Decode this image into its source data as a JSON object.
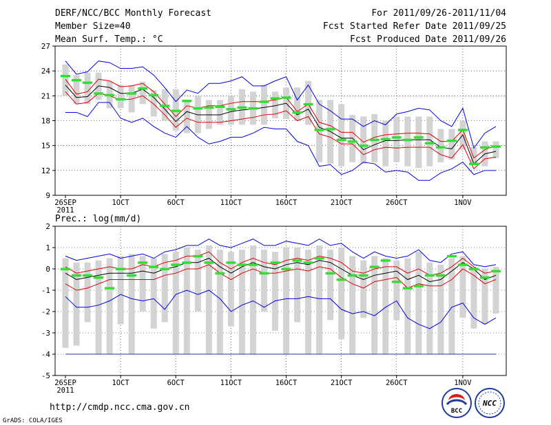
{
  "header": {
    "title": "DERF/NCC/BCC Monthly Forecast",
    "member_size": "Member Size=40",
    "variable": "Mean Surf. Temp.: °C",
    "period": "For 2011/09/26-2011/11/04",
    "started": "Fcst Started Refer Date 2011/09/25",
    "produced": "Fcst Produced Date 2011/09/26"
  },
  "footer": {
    "url": "http://cmdp.ncc.cma.gov.cn",
    "grads": "GrADS: COLA/IGES",
    "logo_bcc": "BCC",
    "logo_ncc": "NCC"
  },
  "colors": {
    "spread_box": "#d3d3d3",
    "ensemble_mean": "#000000",
    "one_sd": "#dd0000",
    "envelope": "#0000dd",
    "member_median": "#33dd33",
    "grid": "#000000"
  },
  "chart_data": [
    {
      "type": "line",
      "title": "Mean Surf. Temp.: °C",
      "xlabel": "",
      "ylabel": "°C",
      "ylim": [
        9,
        27
      ],
      "yticks": [
        "27",
        "24",
        "21",
        "18",
        "15",
        "12",
        "9"
      ],
      "xticks": [
        "26SEP",
        "1OCT",
        "6OCT",
        "11OCT",
        "16OCT",
        "21OCT",
        "26OCT",
        "1NOV"
      ],
      "xtick_days": [
        0,
        5,
        10,
        15,
        20,
        25,
        30,
        36
      ],
      "year_label": "2011",
      "days": 40,
      "grid": true,
      "series": [
        {
          "name": "max",
          "values": [
            25.2,
            23.6,
            23.9,
            25.2,
            25,
            24.3,
            24.3,
            24.5,
            23.5,
            22,
            20.3,
            21.7,
            21.3,
            22.5,
            22.5,
            22.8,
            23.3,
            22.2,
            22.2,
            22.8,
            23.3,
            20.5,
            22.3,
            20,
            19.2,
            18.2,
            18.2,
            17.3,
            18,
            17.5,
            18.8,
            19.1,
            19.5,
            19.3,
            18,
            17.3,
            19.5,
            14.7,
            16.5,
            17.3
          ]
        },
        {
          "name": "plus_sd",
          "values": [
            23,
            21.2,
            21.5,
            23,
            22.8,
            22.1,
            22.2,
            22.5,
            21.5,
            20,
            18.5,
            19.8,
            19.5,
            19.8,
            19.8,
            20.1,
            20.3,
            20.3,
            20.3,
            20.5,
            20.8,
            19.1,
            20,
            17.8,
            17.4,
            16.6,
            16.6,
            15.4,
            16,
            16.3,
            16.4,
            16.5,
            16.5,
            16.4,
            15.5,
            15.5,
            16.9,
            13.5,
            14.5,
            15
          ]
        },
        {
          "name": "mean",
          "values": [
            22.3,
            20.8,
            20.9,
            22.2,
            22,
            21.3,
            21.3,
            21.8,
            20.8,
            19.4,
            17.9,
            19.1,
            18.7,
            18.7,
            18.7,
            19.1,
            19.3,
            19.4,
            19.6,
            19.8,
            20.1,
            18.7,
            19.4,
            17.2,
            16.7,
            15.9,
            15.9,
            14.5,
            15.1,
            15.6,
            15.6,
            15.7,
            15.7,
            15.7,
            14.8,
            14.6,
            16.3,
            12.8,
            14,
            14.3
          ]
        },
        {
          "name": "minus_sd",
          "values": [
            21.5,
            20,
            20.2,
            21.3,
            21,
            20.5,
            20.6,
            21,
            20,
            18.7,
            17.2,
            18.3,
            17.8,
            17.8,
            17.8,
            18,
            18.2,
            18.4,
            18.7,
            18.8,
            19.2,
            18,
            18.5,
            16.4,
            16,
            15.2,
            15.2,
            13.9,
            14.5,
            14.8,
            14.7,
            14.8,
            14.8,
            14.8,
            13.9,
            13.5,
            15.1,
            12.2,
            13.4,
            13.6
          ]
        },
        {
          "name": "min",
          "values": [
            19,
            19,
            18.5,
            20.2,
            20.2,
            18.3,
            17.8,
            18.3,
            17.3,
            16.5,
            16,
            17.3,
            16,
            15.2,
            15.5,
            16,
            16,
            16.5,
            17.2,
            17,
            17,
            15.5,
            15,
            12.5,
            12.7,
            11.5,
            12,
            13,
            12.8,
            11.8,
            12,
            11.8,
            10.8,
            10.8,
            11.7,
            12.2,
            13,
            11.5,
            12,
            12
          ]
        },
        {
          "name": "median",
          "values": [
            23.4,
            22.9,
            22.6,
            21.3,
            21.1,
            20.6,
            21.3,
            21.9,
            21.1,
            19.8,
            19.2,
            20.4,
            19.5,
            19.6,
            19.7,
            19.4,
            19.6,
            19.5,
            20.3,
            20.7,
            20.8,
            19,
            20,
            16.9,
            17,
            15.7,
            15.5,
            15,
            15.7,
            15.8,
            16,
            15.7,
            16,
            15.3,
            14.8,
            15.6,
            16.9,
            12.8,
            14.8,
            14.9
          ]
        },
        {
          "name": "box_top",
          "values": [
            24.8,
            23.5,
            23.8,
            23.8,
            22.8,
            22.3,
            22.3,
            22.7,
            21.7,
            21.8,
            21.8,
            20.5,
            21,
            20.5,
            20.5,
            21,
            21.8,
            21.5,
            22.3,
            21.5,
            22,
            22,
            22.8,
            20.5,
            20.5,
            20,
            18.7,
            18.5,
            18.8,
            18,
            18.5,
            18.5,
            18.5,
            18.5,
            17,
            17,
            18,
            14.8,
            15.5,
            15.5
          ]
        },
        {
          "name": "box_bottom",
          "values": [
            21,
            20,
            20,
            20.5,
            19.5,
            19.5,
            19,
            20,
            18.5,
            18,
            16.8,
            16.5,
            16.5,
            17,
            17.5,
            17.5,
            17.5,
            17.5,
            17.5,
            18.3,
            18.2,
            18,
            17.5,
            13,
            12.8,
            12.5,
            13,
            12.8,
            13,
            12.5,
            13,
            12.5,
            12.3,
            12.5,
            13,
            13.3,
            14.5,
            12.8,
            12.5,
            13.5
          ]
        }
      ]
    },
    {
      "type": "line",
      "title": "Prec.: log(mm/d)",
      "xlabel": "",
      "ylabel": "log(mm/d)",
      "ylim": [
        -5,
        2
      ],
      "yticks": [
        "2",
        "1",
        "0",
        "-1",
        "-2",
        "-3",
        "-4",
        "-5"
      ],
      "xticks": [
        "26SEP",
        "1OCT",
        "6OCT",
        "11OCT",
        "16OCT",
        "21OCT",
        "26OCT",
        "1NOV"
      ],
      "xtick_days": [
        0,
        5,
        10,
        15,
        20,
        25,
        30,
        36
      ],
      "year_label": "2011",
      "days": 40,
      "grid": true,
      "series": [
        {
          "name": "max",
          "values": [
            0.6,
            0.4,
            0.5,
            0.6,
            0.7,
            0.5,
            0.6,
            0.7,
            0.5,
            0.8,
            0.9,
            1.1,
            1.1,
            1.4,
            1.1,
            1,
            1.2,
            1.4,
            1.1,
            1.1,
            1.3,
            1.2,
            1.1,
            1.4,
            1.1,
            1.2,
            0.8,
            0.5,
            0.8,
            0.6,
            0.5,
            0.6,
            0.9,
            0.4,
            0.3,
            0.7,
            0.8,
            0.2,
            0.1,
            0.2
          ]
        },
        {
          "name": "plus_sd",
          "values": [
            0.1,
            -0.2,
            -0.1,
            0,
            0.1,
            0,
            0,
            0.2,
            0.1,
            0.3,
            0.4,
            0.6,
            0.6,
            0.8,
            0.3,
            0,
            0.3,
            0.5,
            0.3,
            0.2,
            0.4,
            0.5,
            0.4,
            0.6,
            0.5,
            0.3,
            -0.1,
            -0.2,
            0,
            0.1,
            0.1,
            -0.2,
            0,
            -0.3,
            -0.2,
            0.1,
            0.5,
            0.1,
            -0.2,
            -0.1
          ]
        },
        {
          "name": "mean",
          "values": [
            -0.2,
            -0.5,
            -0.4,
            -0.3,
            -0.2,
            -0.2,
            -0.2,
            -0.1,
            -0.2,
            0,
            0.1,
            0.3,
            0.3,
            0.5,
            0.1,
            -0.2,
            0.1,
            0.3,
            0.1,
            0,
            0.2,
            0.3,
            0.2,
            0.4,
            0.3,
            0,
            -0.3,
            -0.5,
            -0.3,
            -0.2,
            -0.1,
            -0.5,
            -0.3,
            -0.6,
            -0.5,
            -0.1,
            0.3,
            0,
            -0.5,
            -0.3
          ]
        },
        {
          "name": "minus_sd",
          "values": [
            -0.7,
            -1,
            -0.9,
            -0.7,
            -0.5,
            -0.5,
            -0.5,
            -0.5,
            -0.5,
            -0.3,
            -0.2,
            0,
            0,
            0.2,
            -0.2,
            -0.5,
            -0.2,
            0,
            -0.2,
            -0.2,
            -0.1,
            0,
            -0.1,
            0.1,
            0,
            -0.4,
            -0.7,
            -0.9,
            -0.6,
            -0.5,
            -0.4,
            -0.9,
            -0.7,
            -0.8,
            -0.8,
            -0.5,
            0,
            -0.3,
            -0.7,
            -0.5
          ]
        },
        {
          "name": "min",
          "values": [
            -1.3,
            -1.8,
            -1.8,
            -1.7,
            -1.5,
            -1.2,
            -1.4,
            -1.5,
            -1.4,
            -1.9,
            -1.2,
            -1,
            -1.2,
            -1,
            -1.4,
            -2,
            -1.7,
            -1.5,
            -1.8,
            -1.5,
            -1.4,
            -1.4,
            -1.3,
            -1.4,
            -1.4,
            -1.9,
            -2.1,
            -2,
            -2.2,
            -1.8,
            -1.5,
            -2.3,
            -2.6,
            -2.8,
            -2.5,
            -1.8,
            -1.6,
            -2.3,
            -2.6,
            -2.3
          ]
        },
        {
          "name": "median",
          "values": [
            0,
            -0.3,
            -0.3,
            -0.4,
            -0.9,
            0,
            -0.3,
            0.3,
            0.1,
            0,
            0.2,
            0.3,
            0.6,
            0.3,
            -0.2,
            0.3,
            0.2,
            0.2,
            -0.2,
            0.3,
            0,
            0.4,
            0.3,
            0.5,
            -0.2,
            -0.5,
            -0.3,
            -0.3,
            0.1,
            0.4,
            -0.6,
            -0.9,
            -0.8,
            -0.3,
            -0.3,
            0.6,
            0.2,
            0,
            -0.4,
            -0.1
          ]
        },
        {
          "name": "box_top",
          "values": [
            0.5,
            0.3,
            0.3,
            0.4,
            0.5,
            0.6,
            0.7,
            0.6,
            0.5,
            0.7,
            0.8,
            1,
            0.9,
            1.1,
            0.9,
            0.8,
            0.9,
            1.1,
            0.9,
            0.8,
            1,
            1,
            0.9,
            1.1,
            0.9,
            1,
            0.6,
            0.4,
            0.6,
            0.5,
            0.4,
            0.5,
            0.8,
            0.3,
            0.2,
            0.5,
            0.6,
            0.1,
            0,
            0.1
          ]
        },
        {
          "name": "box_bottom",
          "values": [
            -3.7,
            -3.6,
            -2.5,
            -4,
            -4,
            -2.6,
            -4,
            -2,
            -2.8,
            -2.5,
            -4,
            -4,
            -2,
            -4,
            -4,
            -2.7,
            -4,
            -4,
            -2,
            -2.9,
            -4,
            -2.5,
            -4,
            -4,
            -2.4,
            -3.3,
            -4,
            -2.3,
            -4,
            -4,
            -2.4,
            -4,
            -4,
            -4,
            -4,
            -4,
            -2.3,
            -2.8,
            -2.6,
            -2.1
          ]
        },
        {
          "name": "floor",
          "values": [
            -4,
            -4,
            -4,
            -4,
            -4,
            -4,
            -4,
            -4,
            -4,
            -4,
            -4,
            -4,
            -4,
            -4,
            -4,
            -4,
            -4,
            -4,
            -4,
            -4,
            -4,
            -4,
            -4,
            -4,
            -4,
            -4,
            -4,
            -4,
            -4,
            -4,
            -4,
            -4,
            -4,
            -4,
            -4,
            -4,
            -4,
            -4,
            -4,
            -4
          ]
        }
      ]
    }
  ]
}
